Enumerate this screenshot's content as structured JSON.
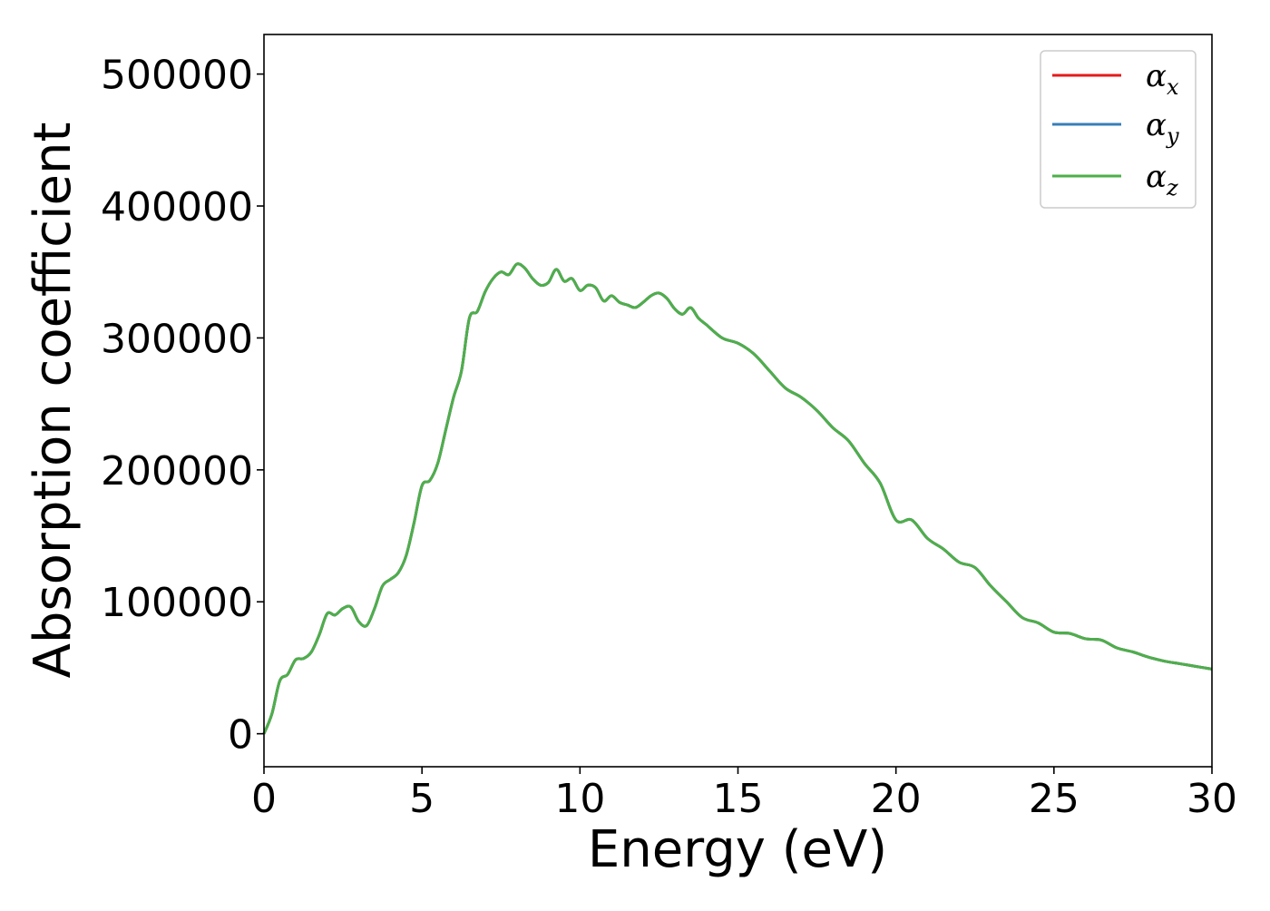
{
  "chart_data": {
    "type": "line",
    "title": "",
    "xlabel": "Energy (eV)",
    "ylabel": "Absorption coefficient",
    "xlim": [
      0,
      30
    ],
    "ylim": [
      -25000,
      530000
    ],
    "xticks": [
      0,
      5,
      10,
      15,
      20,
      25,
      30
    ],
    "xtick_labels": [
      "0",
      "5",
      "10",
      "15",
      "20",
      "25",
      "30"
    ],
    "yticks": [
      0,
      100000,
      200000,
      300000,
      400000,
      500000
    ],
    "ytick_labels": [
      "0",
      "100000",
      "200000",
      "300000",
      "400000",
      "500000"
    ],
    "grid": false,
    "legend_position": "top-right",
    "x": [
      0,
      0.25,
      0.5,
      0.75,
      1.0,
      1.25,
      1.5,
      1.75,
      2.0,
      2.25,
      2.5,
      2.75,
      3.0,
      3.25,
      3.5,
      3.75,
      4.0,
      4.25,
      4.5,
      4.75,
      5.0,
      5.25,
      5.5,
      5.75,
      6.0,
      6.25,
      6.5,
      6.75,
      7.0,
      7.25,
      7.5,
      7.75,
      8.0,
      8.25,
      8.5,
      8.75,
      9.0,
      9.25,
      9.5,
      9.75,
      10.0,
      10.25,
      10.5,
      10.75,
      11.0,
      11.25,
      11.5,
      11.75,
      12.0,
      12.25,
      12.5,
      12.75,
      13.0,
      13.25,
      13.5,
      13.75,
      14.0,
      14.5,
      15.0,
      15.5,
      16.0,
      16.5,
      17.0,
      17.5,
      18.0,
      18.5,
      19.0,
      19.5,
      20.0,
      20.5,
      21.0,
      21.5,
      22.0,
      22.5,
      23.0,
      23.5,
      24.0,
      24.5,
      25.0,
      25.5,
      26.0,
      26.5,
      27.0,
      27.5,
      28.0,
      28.5,
      29.0,
      29.5,
      30.0
    ],
    "series": [
      {
        "name": "α_x",
        "color": "#e41a1c",
        "values": [
          0,
          15000,
          40000,
          45000,
          56000,
          57000,
          62000,
          75000,
          91000,
          90000,
          95000,
          96000,
          85000,
          82000,
          95000,
          112000,
          117000,
          122000,
          135000,
          160000,
          188000,
          192000,
          205000,
          230000,
          255000,
          275000,
          315000,
          320000,
          335000,
          345000,
          350000,
          348000,
          356000,
          353000,
          345000,
          340000,
          342000,
          352000,
          343000,
          345000,
          336000,
          340000,
          338000,
          328000,
          332000,
          327000,
          325000,
          323000,
          327000,
          332000,
          334000,
          330000,
          322000,
          318000,
          323000,
          315000,
          310000,
          300000,
          296000,
          288000,
          275000,
          262000,
          255000,
          245000,
          232000,
          222000,
          205000,
          190000,
          162000,
          162000,
          148000,
          140000,
          130000,
          126000,
          112000,
          100000,
          88000,
          84000,
          77000,
          76000,
          72000,
          71000,
          65000,
          62000,
          58000,
          55000,
          53000,
          51000,
          49000
        ]
      },
      {
        "name": "α_y",
        "color": "#377eb8",
        "values": [
          0,
          15000,
          40000,
          45000,
          56000,
          57000,
          62000,
          75000,
          91000,
          90000,
          95000,
          96000,
          85000,
          82000,
          95000,
          112000,
          117000,
          122000,
          135000,
          160000,
          188000,
          192000,
          205000,
          230000,
          255000,
          275000,
          315000,
          320000,
          335000,
          345000,
          350000,
          348000,
          356000,
          353000,
          345000,
          340000,
          342000,
          352000,
          343000,
          345000,
          336000,
          340000,
          338000,
          328000,
          332000,
          327000,
          325000,
          323000,
          327000,
          332000,
          334000,
          330000,
          322000,
          318000,
          323000,
          315000,
          310000,
          300000,
          296000,
          288000,
          275000,
          262000,
          255000,
          245000,
          232000,
          222000,
          205000,
          190000,
          162000,
          162000,
          148000,
          140000,
          130000,
          126000,
          112000,
          100000,
          88000,
          84000,
          77000,
          76000,
          72000,
          71000,
          65000,
          62000,
          58000,
          55000,
          53000,
          51000,
          49000
        ]
      },
      {
        "name": "α_z",
        "color": "#4daf4a",
        "values": [
          0,
          15000,
          40000,
          45000,
          56000,
          57000,
          62000,
          75000,
          91000,
          90000,
          95000,
          96000,
          85000,
          82000,
          95000,
          112000,
          117000,
          122000,
          135000,
          160000,
          188000,
          192000,
          205000,
          230000,
          255000,
          275000,
          315000,
          320000,
          335000,
          345000,
          350000,
          348000,
          356000,
          353000,
          345000,
          340000,
          342000,
          352000,
          343000,
          345000,
          336000,
          340000,
          338000,
          328000,
          332000,
          327000,
          325000,
          323000,
          327000,
          332000,
          334000,
          330000,
          322000,
          318000,
          323000,
          315000,
          310000,
          300000,
          296000,
          288000,
          275000,
          262000,
          255000,
          245000,
          232000,
          222000,
          205000,
          190000,
          162000,
          162000,
          148000,
          140000,
          130000,
          126000,
          112000,
          100000,
          88000,
          84000,
          77000,
          76000,
          72000,
          71000,
          65000,
          62000,
          58000,
          55000,
          53000,
          51000,
          49000
        ]
      }
    ],
    "legend": [
      {
        "base": "α",
        "sub": "x",
        "color": "#e41a1c"
      },
      {
        "base": "α",
        "sub": "y",
        "color": "#377eb8"
      },
      {
        "base": "α",
        "sub": "z",
        "color": "#4daf4a"
      }
    ]
  }
}
